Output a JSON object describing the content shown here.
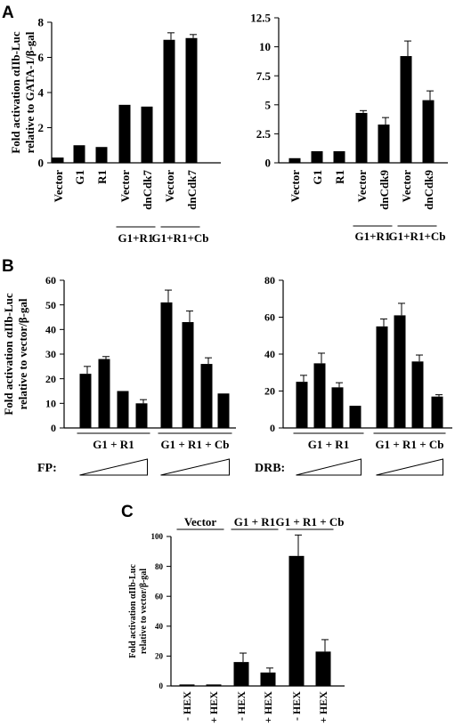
{
  "panels": {
    "A": "A",
    "B": "B",
    "C": "C"
  },
  "chart_data": [
    {
      "id": "A1",
      "type": "bar",
      "panel": "A",
      "ylabel": [
        "Fold activation αIIb-Luc",
        "relative to GATA-1/β-gal"
      ],
      "ylim": [
        0,
        8
      ],
      "yticks": [
        "0",
        "2",
        "4",
        "6",
        "8"
      ],
      "categories": [
        "Vector",
        "G1",
        "R1",
        "Vector",
        "dnCdk7",
        "Vector",
        "dnCdk7"
      ],
      "values": [
        0.3,
        1.0,
        0.9,
        3.3,
        3.2,
        7.0,
        7.1
      ],
      "errors": [
        0,
        0,
        0,
        0,
        0,
        0.4,
        0.2
      ],
      "groups": [
        {
          "label": "G1+R1",
          "start": 3,
          "end": 4
        },
        {
          "label": "G1+R1+Cb",
          "start": 5,
          "end": 6
        }
      ],
      "grid": false
    },
    {
      "id": "A2",
      "type": "bar",
      "panel": "A",
      "ylim": [
        0,
        12.5
      ],
      "yticks": [
        "0",
        "2.5",
        "5",
        "7.5",
        "10",
        "12.5"
      ],
      "categories": [
        "Vector",
        "G1",
        "R1",
        "Vector",
        "dnCdk9",
        "Vector",
        "dnCdk9"
      ],
      "values": [
        0.4,
        1.0,
        1.0,
        4.3,
        3.3,
        9.2,
        5.4
      ],
      "errors": [
        0,
        0,
        0,
        0.2,
        0.6,
        1.3,
        0.8
      ],
      "groups": [
        {
          "label": "G1+R1",
          "start": 3,
          "end": 4
        },
        {
          "label": "G1+R1+Cb",
          "start": 5,
          "end": 6
        }
      ],
      "grid": false
    },
    {
      "id": "B1",
      "type": "bar",
      "panel": "B",
      "ylabel": [
        "Fold activation αIIb-Luc",
        "relative to vector/β-gal"
      ],
      "ylim": [
        0,
        60
      ],
      "yticks": [
        "0",
        "10",
        "20",
        "30",
        "40",
        "50",
        "60"
      ],
      "values": [
        22,
        28,
        15,
        10,
        51,
        43,
        26,
        14
      ],
      "errors": [
        3,
        1,
        0,
        1.5,
        5,
        4.5,
        2.5,
        0
      ],
      "groups": [
        {
          "label": "G1 + R1",
          "start": 0,
          "end": 3
        },
        {
          "label": "G1 + R1 + Cb",
          "start": 4,
          "end": 7
        }
      ],
      "treatment": "FP:",
      "grid": false
    },
    {
      "id": "B2",
      "type": "bar",
      "panel": "B",
      "ylim": [
        0,
        80
      ],
      "yticks": [
        "0",
        "20",
        "40",
        "60",
        "80"
      ],
      "values": [
        25,
        35,
        22,
        12,
        55,
        61,
        36,
        17
      ],
      "errors": [
        3.5,
        5.5,
        2.5,
        0,
        4,
        6.5,
        3.5,
        1
      ],
      "groups": [
        {
          "label": "G1 + R1",
          "start": 0,
          "end": 3
        },
        {
          "label": "G1 + R1 + Cb",
          "start": 4,
          "end": 7
        }
      ],
      "treatment": "DRB:",
      "grid": false
    },
    {
      "id": "C",
      "type": "bar",
      "panel": "C",
      "ylabel": [
        "Fold activation αIIb-Luc",
        "relative to vector/β-gal"
      ],
      "ylim": [
        0,
        100
      ],
      "yticks": [
        "0",
        "20",
        "40",
        "60",
        "80",
        "100"
      ],
      "categories": [
        "- HEX",
        "+ HEX",
        "- HEX",
        "+ HEX",
        "- HEX",
        "+ HEX"
      ],
      "values": [
        1,
        1,
        16,
        9,
        87,
        23
      ],
      "errors": [
        0,
        0,
        6,
        3,
        14,
        8
      ],
      "groups": [
        {
          "label": "Vector",
          "start": 0,
          "end": 1
        },
        {
          "label": "G1 + R1",
          "start": 2,
          "end": 3
        },
        {
          "label": "G1 + R1 + Cb",
          "start": 4,
          "end": 5
        }
      ],
      "grid": false
    }
  ]
}
